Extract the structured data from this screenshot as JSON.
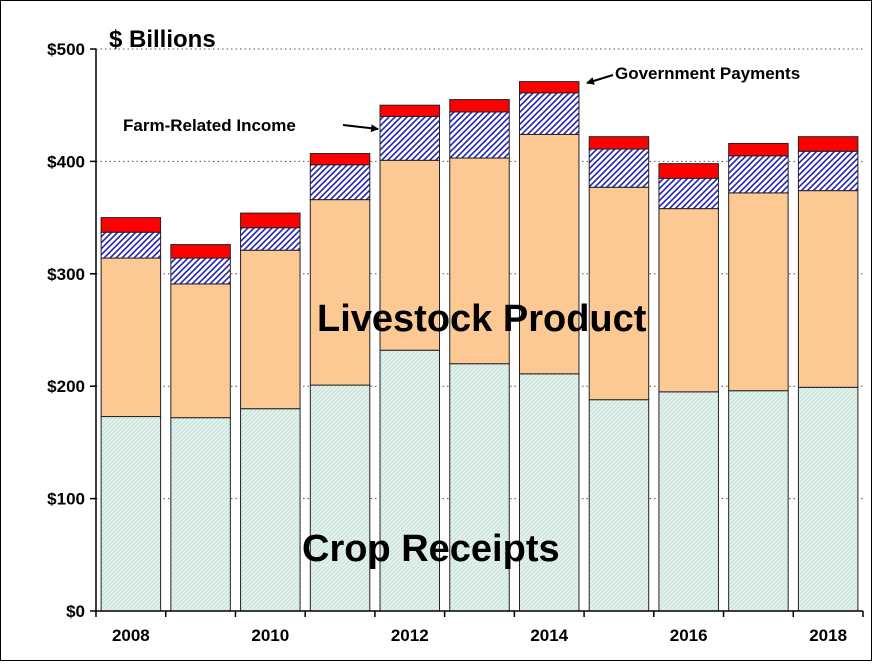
{
  "chart_data": {
    "type": "bar",
    "stacked": true,
    "title": "",
    "unit_label": "$ Billions",
    "xlabel": "",
    "ylabel": "",
    "ylim": [
      0,
      500
    ],
    "grid": "dotted horizontal",
    "categories": [
      "2008",
      "2009",
      "2010",
      "2011",
      "2012",
      "2013",
      "2014",
      "2015",
      "2016",
      "2017",
      "2018"
    ],
    "x_tick_labels": [
      "2008",
      "",
      "2010",
      "",
      "2012",
      "",
      "2014",
      "",
      "2016",
      "",
      "2018"
    ],
    "y_ticks": [
      0,
      100,
      200,
      300,
      400,
      500
    ],
    "y_tick_labels": [
      "$0",
      "$100",
      "$200",
      "$300",
      "$400",
      "$500"
    ],
    "series": [
      {
        "name": "Crop Receipts",
        "key": "crop",
        "color": "#e3f1ec",
        "pattern": "fine-hatch",
        "values": [
          173,
          172,
          180,
          201,
          232,
          220,
          211,
          188,
          195,
          196,
          199
        ]
      },
      {
        "name": "Livestock Product",
        "key": "livestock",
        "color": "#fcc894",
        "pattern": "solid",
        "values": [
          141,
          119,
          141,
          165,
          169,
          183,
          213,
          189,
          163,
          176,
          175
        ]
      },
      {
        "name": "Farm-Related Income",
        "key": "farm",
        "color": "#2222bb",
        "pattern": "diagonal-hatch",
        "values": [
          23,
          23,
          20,
          31,
          39,
          41,
          37,
          34,
          27,
          33,
          35
        ]
      },
      {
        "name": "Government Payments",
        "key": "gov",
        "color": "#ff0000",
        "pattern": "solid",
        "values": [
          13,
          12,
          13,
          10,
          10,
          11,
          10,
          11,
          13,
          11,
          13
        ]
      }
    ],
    "annotations": [
      {
        "text": "Government Payments",
        "target_category": "2014",
        "target_series": "gov"
      },
      {
        "text": "Farm-Related Income",
        "target_category": "2012",
        "target_series": "farm"
      }
    ],
    "inline_labels": [
      "Livestock Product",
      "Crop Receipts"
    ]
  }
}
